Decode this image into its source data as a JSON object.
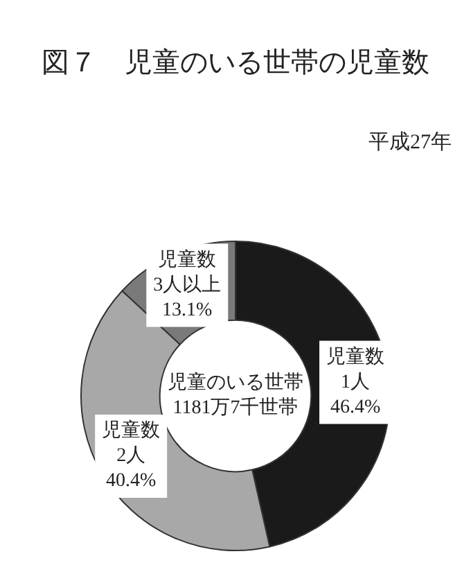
{
  "chart_data": {
    "type": "donut",
    "title": "図７　児童のいる世帯の児童数",
    "subtitle": "平成27年",
    "categories": [
      "児童数\n1人",
      "児童数\n2人",
      "児童数\n3人以上"
    ],
    "values": [
      46.4,
      40.4,
      13.1
    ],
    "value_labels": [
      "46.4%",
      "40.4%",
      "13.1%"
    ],
    "colors": [
      "#1a1a1a",
      "#a8a8a8",
      "#7a7a7a"
    ],
    "annotations": [
      "児童のいる世帯\n1181万7千世帯"
    ],
    "legend": false
  }
}
